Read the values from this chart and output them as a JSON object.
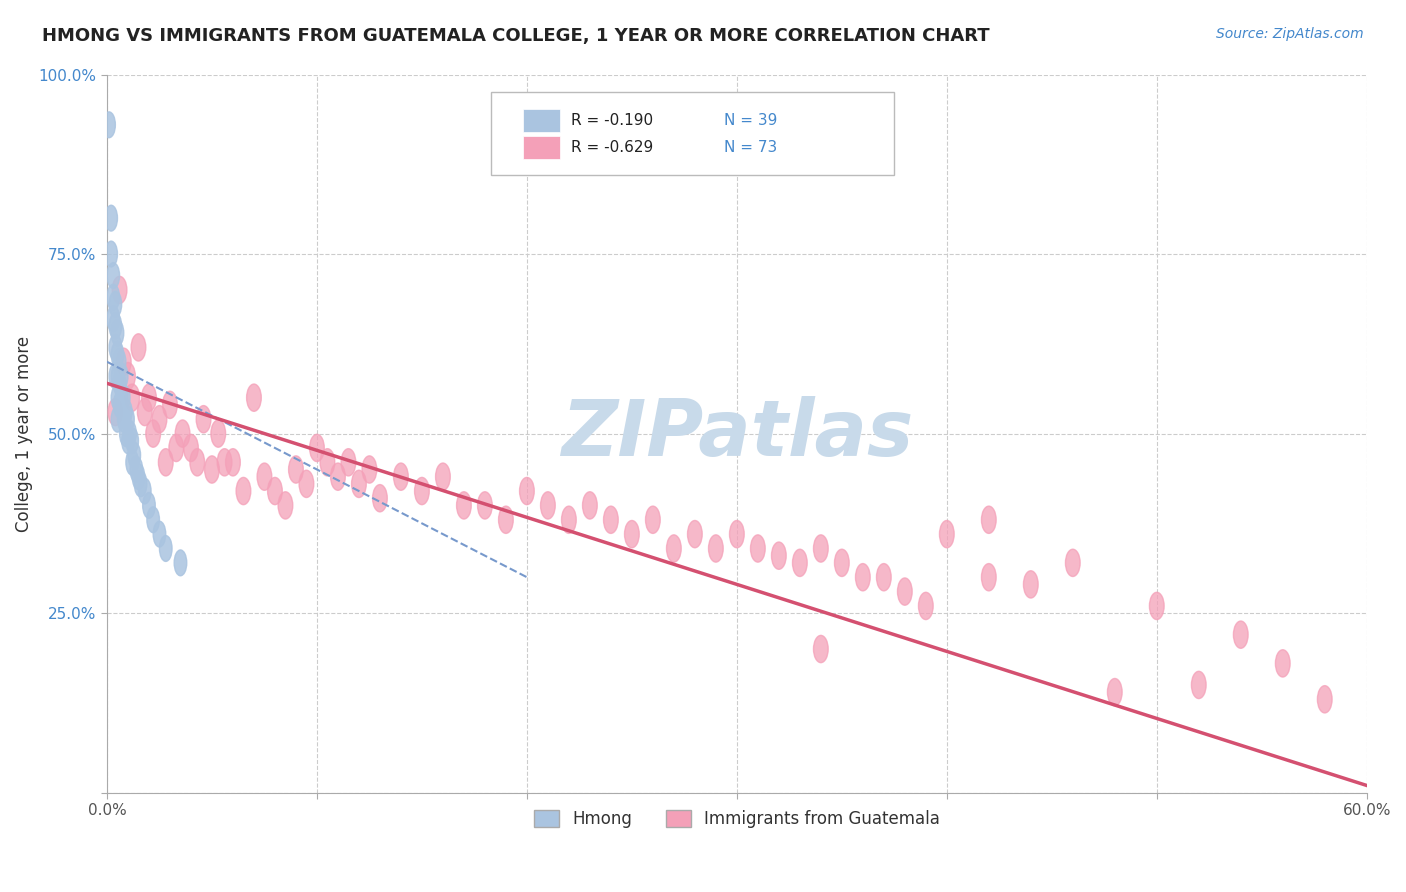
{
  "title": "HMONG VS IMMIGRANTS FROM GUATEMALA COLLEGE, 1 YEAR OR MORE CORRELATION CHART",
  "source_text": "Source: ZipAtlas.com",
  "ylabel": "College, 1 year or more",
  "xlim": [
    0.0,
    0.6
  ],
  "ylim": [
    0.0,
    1.0
  ],
  "watermark": "ZIPatlas",
  "watermark_color": "#c8daea",
  "legend_r1": "R = -0.190",
  "legend_n1": "N = 39",
  "legend_r2": "R = -0.629",
  "legend_n2": "N = 73",
  "hmong_color": "#aac4e0",
  "guatemala_color": "#f4a0b8",
  "hmong_line_color": "#7799cc",
  "guatemala_line_color": "#d45070",
  "hmong_x": [
    0.001,
    0.002,
    0.002,
    0.003,
    0.003,
    0.003,
    0.004,
    0.004,
    0.004,
    0.004,
    0.005,
    0.005,
    0.005,
    0.005,
    0.005,
    0.006,
    0.006,
    0.006,
    0.007,
    0.007,
    0.008,
    0.008,
    0.009,
    0.009,
    0.01,
    0.01,
    0.011,
    0.012,
    0.012,
    0.013,
    0.014,
    0.015,
    0.016,
    0.018,
    0.02,
    0.022,
    0.025,
    0.028,
    0.035
  ],
  "hmong_y": [
    0.93,
    0.8,
    0.75,
    0.72,
    0.69,
    0.66,
    0.68,
    0.65,
    0.62,
    0.58,
    0.64,
    0.61,
    0.58,
    0.55,
    0.52,
    0.6,
    0.57,
    0.54,
    0.58,
    0.55,
    0.55,
    0.52,
    0.53,
    0.5,
    0.52,
    0.49,
    0.5,
    0.49,
    0.46,
    0.47,
    0.45,
    0.44,
    0.43,
    0.42,
    0.4,
    0.38,
    0.36,
    0.34,
    0.32
  ],
  "guatemala_x": [
    0.004,
    0.006,
    0.008,
    0.01,
    0.012,
    0.015,
    0.018,
    0.02,
    0.022,
    0.025,
    0.028,
    0.03,
    0.033,
    0.036,
    0.04,
    0.043,
    0.046,
    0.05,
    0.053,
    0.056,
    0.06,
    0.065,
    0.07,
    0.075,
    0.08,
    0.085,
    0.09,
    0.095,
    0.1,
    0.105,
    0.11,
    0.115,
    0.12,
    0.125,
    0.13,
    0.14,
    0.15,
    0.16,
    0.17,
    0.18,
    0.19,
    0.2,
    0.21,
    0.22,
    0.23,
    0.24,
    0.25,
    0.26,
    0.27,
    0.28,
    0.29,
    0.3,
    0.31,
    0.32,
    0.33,
    0.34,
    0.35,
    0.36,
    0.37,
    0.38,
    0.39,
    0.4,
    0.42,
    0.44,
    0.46,
    0.48,
    0.5,
    0.52,
    0.54,
    0.56,
    0.58,
    0.34,
    0.42
  ],
  "guatemala_y": [
    0.53,
    0.7,
    0.6,
    0.58,
    0.55,
    0.62,
    0.53,
    0.55,
    0.5,
    0.52,
    0.46,
    0.54,
    0.48,
    0.5,
    0.48,
    0.46,
    0.52,
    0.45,
    0.5,
    0.46,
    0.46,
    0.42,
    0.55,
    0.44,
    0.42,
    0.4,
    0.45,
    0.43,
    0.48,
    0.46,
    0.44,
    0.46,
    0.43,
    0.45,
    0.41,
    0.44,
    0.42,
    0.44,
    0.4,
    0.4,
    0.38,
    0.42,
    0.4,
    0.38,
    0.4,
    0.38,
    0.36,
    0.38,
    0.34,
    0.36,
    0.34,
    0.36,
    0.34,
    0.33,
    0.32,
    0.34,
    0.32,
    0.3,
    0.3,
    0.28,
    0.26,
    0.36,
    0.38,
    0.29,
    0.32,
    0.14,
    0.26,
    0.15,
    0.22,
    0.18,
    0.13,
    0.2,
    0.3
  ],
  "hmong_trendline_x": [
    0.0,
    0.2
  ],
  "hmong_trendline_y": [
    0.6,
    0.3
  ],
  "guatemala_trendline_x": [
    0.0,
    0.6
  ],
  "guatemala_trendline_y": [
    0.57,
    0.01
  ],
  "background_color": "#ffffff",
  "grid_color": "#cccccc"
}
